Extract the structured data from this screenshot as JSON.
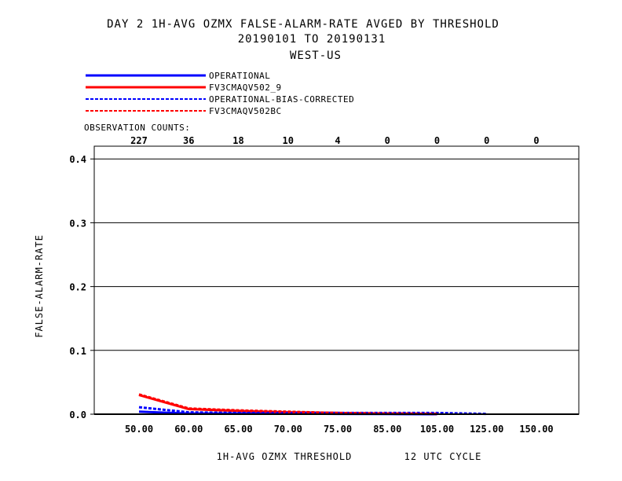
{
  "header": {
    "line1": "DAY 2   1H-AVG OZMX FALSE-ALARM-RATE   AVGED BY THRESHOLD",
    "line2": "20190101 TO 20190131",
    "line3": "WEST-US"
  },
  "observation_counts": {
    "label": "OBSERVATION COUNTS:",
    "values": [
      "227",
      "36",
      "18",
      "10",
      "4",
      "0",
      "0",
      "0",
      "0"
    ]
  },
  "footer": {
    "xlabel": "1H-AVG OZMX THRESHOLD",
    "cycle": "12 UTC CYCLE"
  },
  "chart_data": {
    "type": "line",
    "title": "DAY 2   1H-AVG OZMX FALSE-ALARM-RATE   AVGED BY THRESHOLD",
    "ylabel": "FALSE-ALARM-RATE",
    "xlabel": "1H-AVG OZMX THRESHOLD",
    "categories": [
      "50.00",
      "60.00",
      "65.00",
      "70.00",
      "75.00",
      "85.00",
      "105.00",
      "125.00",
      "150.00"
    ],
    "yticks": [
      "0.0",
      "0.1",
      "0.2",
      "0.3",
      "0.4"
    ],
    "ylim": [
      0,
      0.42
    ],
    "grid": true,
    "series": [
      {
        "name": "OPERATIONAL",
        "color": "#0000ff",
        "style": "solid",
        "values": [
          0.004,
          0.001,
          0.001,
          0.001,
          0.0005,
          0.0003,
          0.0,
          null,
          null
        ]
      },
      {
        "name": "FV3CMAQV502_9",
        "color": "#ff0000",
        "style": "solid",
        "values": [
          0.03,
          0.008,
          0.005,
          0.003,
          0.002,
          0.001,
          0.0005,
          null,
          null
        ]
      },
      {
        "name": "OPERATIONAL-BIAS-CORRECTED",
        "color": "#0000ff",
        "style": "dashed",
        "values": [
          0.011,
          0.003,
          0.002,
          0.002,
          0.002,
          0.002,
          0.002,
          0.0005,
          null
        ]
      },
      {
        "name": "FV3CMAQV502BC",
        "color": "#ff0000",
        "style": "dashed",
        "values": [
          0.031,
          0.009,
          0.006,
          0.004,
          0.002,
          0.001,
          0.0005,
          null,
          null
        ]
      }
    ]
  }
}
